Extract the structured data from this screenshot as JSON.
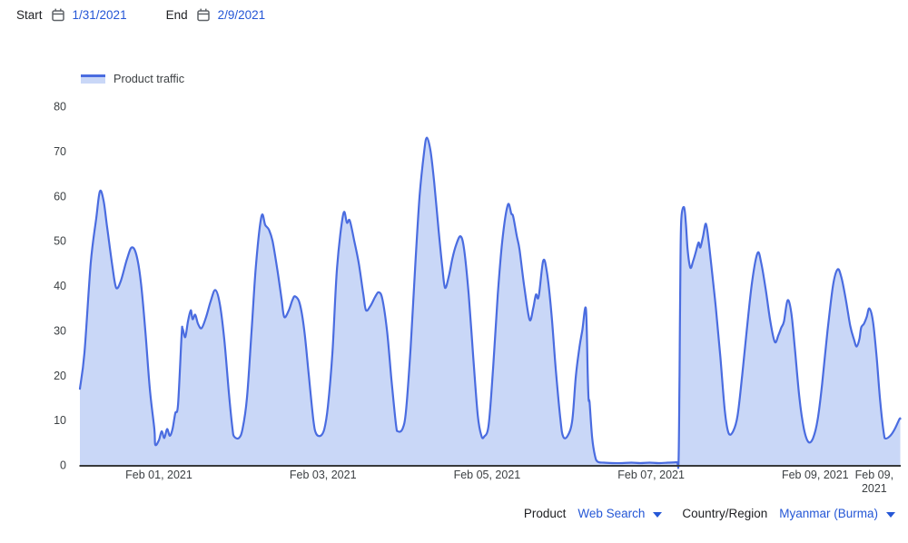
{
  "header": {
    "start_label": "Start",
    "start_date": "1/31/2021",
    "end_label": "End",
    "end_date": "2/9/2021"
  },
  "legend": {
    "label": "Product traffic"
  },
  "footer": {
    "product_label": "Product",
    "product_value": "Web Search",
    "region_label": "Country/Region",
    "region_value": "Myanmar (Burma)"
  },
  "icons": {
    "start_date_picker": "calendar-icon",
    "end_date_picker": "calendar-icon",
    "product_dropdown": "chevron-down-icon",
    "region_dropdown": "chevron-down-icon"
  },
  "colors": {
    "link_blue": "#2557d6",
    "line_blue": "#4a6ce0",
    "fill_blue": "#c9d7f7",
    "axis_dark": "#37393b",
    "text_dark": "#202124",
    "label_gray": "#3c4043",
    "icon_gray": "#5f6368"
  },
  "chart_data": {
    "type": "area",
    "title": "",
    "series_name": "Product traffic",
    "xlabel": "",
    "ylabel": "",
    "grid": false,
    "legend_position": "top-left",
    "line_color": "#4a6ce0",
    "fill_color": "#c9d7f7",
    "axis_color": "#37393b",
    "tick_label_color": "#3c4043",
    "ylim": [
      0,
      80
    ],
    "y_ticks": [
      0,
      10,
      20,
      30,
      40,
      50,
      60,
      70,
      80
    ],
    "x_unit": "days since Jan 31, 2021 00:00",
    "x_domain": [
      0.037,
      10.037
    ],
    "x_ticks": [
      {
        "pos": 1,
        "label": "Feb 01, 2021"
      },
      {
        "pos": 3,
        "label": "Feb 03, 2021"
      },
      {
        "pos": 5,
        "label": "Feb 05, 2021"
      },
      {
        "pos": 7,
        "label": "Feb 07, 2021"
      },
      {
        "pos": 9,
        "label": "Feb 09, 2021"
      }
    ],
    "x_end_label": {
      "pos": 9.72,
      "lines": [
        "Feb 09,",
        "2021"
      ]
    },
    "points": [
      [
        0.037,
        17
      ],
      [
        0.092,
        25
      ],
      [
        0.169,
        45
      ],
      [
        0.236,
        55
      ],
      [
        0.28,
        61
      ],
      [
        0.325,
        59
      ],
      [
        0.369,
        53
      ],
      [
        0.435,
        44
      ],
      [
        0.48,
        39.5
      ],
      [
        0.535,
        41
      ],
      [
        0.612,
        46
      ],
      [
        0.668,
        48.5
      ],
      [
        0.723,
        47
      ],
      [
        0.779,
        41
      ],
      [
        0.834,
        30
      ],
      [
        0.889,
        17
      ],
      [
        0.945,
        8
      ],
      [
        0.956,
        4.5
      ],
      [
        1.0,
        5.5
      ],
      [
        1.033,
        7.5
      ],
      [
        1.066,
        6
      ],
      [
        1.1,
        8
      ],
      [
        1.133,
        6.5
      ],
      [
        1.166,
        8
      ],
      [
        1.199,
        11.5
      ],
      [
        1.233,
        13.5
      ],
      [
        1.277,
        29
      ],
      [
        1.288,
        30.5
      ],
      [
        1.321,
        28.5
      ],
      [
        1.354,
        32
      ],
      [
        1.388,
        34.5
      ],
      [
        1.41,
        32.5
      ],
      [
        1.443,
        33.5
      ],
      [
        1.476,
        31.5
      ],
      [
        1.52,
        30.5
      ],
      [
        1.576,
        33
      ],
      [
        1.631,
        36.5
      ],
      [
        1.687,
        39
      ],
      [
        1.742,
        36
      ],
      [
        1.797,
        28
      ],
      [
        1.853,
        16
      ],
      [
        1.897,
        8
      ],
      [
        1.919,
        6.3
      ],
      [
        1.975,
        6
      ],
      [
        2.019,
        8
      ],
      [
        2.074,
        15
      ],
      [
        2.13,
        30
      ],
      [
        2.185,
        45
      ],
      [
        2.251,
        55.5
      ],
      [
        2.296,
        53.5
      ],
      [
        2.34,
        52.5
      ],
      [
        2.384,
        50
      ],
      [
        2.44,
        44
      ],
      [
        2.495,
        37
      ],
      [
        2.528,
        33
      ],
      [
        2.584,
        34.5
      ],
      [
        2.628,
        36.8
      ],
      [
        2.661,
        37.6
      ],
      [
        2.717,
        36
      ],
      [
        2.772,
        30
      ],
      [
        2.827,
        20
      ],
      [
        2.883,
        10
      ],
      [
        2.916,
        7
      ],
      [
        2.971,
        6.5
      ],
      [
        3.016,
        8
      ],
      [
        3.06,
        13
      ],
      [
        3.115,
        25
      ],
      [
        3.171,
        44
      ],
      [
        3.248,
        56
      ],
      [
        3.292,
        54
      ],
      [
        3.326,
        54.5
      ],
      [
        3.381,
        50
      ],
      [
        3.436,
        45
      ],
      [
        3.492,
        38
      ],
      [
        3.525,
        34.5
      ],
      [
        3.58,
        35.5
      ],
      [
        3.636,
        37.5
      ],
      [
        3.68,
        38.5
      ],
      [
        3.724,
        37
      ],
      [
        3.78,
        30
      ],
      [
        3.835,
        19
      ],
      [
        3.89,
        9
      ],
      [
        3.913,
        7.5
      ],
      [
        3.968,
        8
      ],
      [
        4.012,
        12
      ],
      [
        4.068,
        26
      ],
      [
        4.123,
        44
      ],
      [
        4.178,
        60
      ],
      [
        4.234,
        70
      ],
      [
        4.267,
        73
      ],
      [
        4.311,
        70
      ],
      [
        4.356,
        63
      ],
      [
        4.411,
        52
      ],
      [
        4.455,
        44
      ],
      [
        4.488,
        39.5
      ],
      [
        4.533,
        42
      ],
      [
        4.577,
        46
      ],
      [
        4.621,
        49
      ],
      [
        4.677,
        51
      ],
      [
        4.721,
        48
      ],
      [
        4.776,
        38
      ],
      [
        4.832,
        24
      ],
      [
        4.887,
        11
      ],
      [
        4.931,
        6.5
      ],
      [
        4.965,
        6.3
      ],
      [
        5.02,
        9
      ],
      [
        5.075,
        22
      ],
      [
        5.131,
        38
      ],
      [
        5.186,
        50
      ],
      [
        5.253,
        58
      ],
      [
        5.297,
        56
      ],
      [
        5.319,
        55.4
      ],
      [
        5.363,
        51
      ],
      [
        5.396,
        48
      ],
      [
        5.452,
        40
      ],
      [
        5.518,
        32.4
      ],
      [
        5.563,
        35
      ],
      [
        5.596,
        38
      ],
      [
        5.629,
        37.5
      ],
      [
        5.684,
        45.5
      ],
      [
        5.729,
        43
      ],
      [
        5.784,
        34
      ],
      [
        5.839,
        21
      ],
      [
        5.895,
        10
      ],
      [
        5.928,
        6.3
      ],
      [
        5.983,
        6.5
      ],
      [
        6.039,
        10
      ],
      [
        6.083,
        20
      ],
      [
        6.127,
        26.3
      ],
      [
        6.161,
        30
      ],
      [
        6.205,
        34.8
      ],
      [
        6.227,
        20
      ],
      [
        6.238,
        14.5
      ],
      [
        6.249,
        14
      ],
      [
        6.282,
        6
      ],
      [
        6.316,
        2
      ],
      [
        6.349,
        0.7
      ],
      [
        6.426,
        0.5
      ],
      [
        6.537,
        0.4
      ],
      [
        6.648,
        0.4
      ],
      [
        6.759,
        0.5
      ],
      [
        6.869,
        0.4
      ],
      [
        6.98,
        0.5
      ],
      [
        7.091,
        0.4
      ],
      [
        7.202,
        0.5
      ],
      [
        7.312,
        0.6
      ],
      [
        7.334,
        0.8
      ],
      [
        7.346,
        20
      ],
      [
        7.357,
        45
      ],
      [
        7.368,
        55
      ],
      [
        7.401,
        57.5
      ],
      [
        7.423,
        54
      ],
      [
        7.445,
        48
      ],
      [
        7.478,
        44
      ],
      [
        7.512,
        45.5
      ],
      [
        7.545,
        47.5
      ],
      [
        7.578,
        49.6
      ],
      [
        7.6,
        48.5
      ],
      [
        7.633,
        51
      ],
      [
        7.667,
        53.8
      ],
      [
        7.7,
        50
      ],
      [
        7.733,
        44.7
      ],
      [
        7.789,
        35
      ],
      [
        7.844,
        24
      ],
      [
        7.899,
        12
      ],
      [
        7.944,
        7.1
      ],
      [
        7.999,
        7.5
      ],
      [
        8.054,
        11
      ],
      [
        8.11,
        20
      ],
      [
        8.165,
        30
      ],
      [
        8.232,
        41
      ],
      [
        8.298,
        47.3
      ],
      [
        8.342,
        45
      ],
      [
        8.398,
        39
      ],
      [
        8.453,
        32
      ],
      [
        8.508,
        27.4
      ],
      [
        8.553,
        29
      ],
      [
        8.586,
        30.6
      ],
      [
        8.619,
        32
      ],
      [
        8.663,
        36.7
      ],
      [
        8.708,
        34
      ],
      [
        8.752,
        26
      ],
      [
        8.807,
        15
      ],
      [
        8.863,
        8
      ],
      [
        8.918,
        5.1
      ],
      [
        8.974,
        6
      ],
      [
        9.029,
        10
      ],
      [
        9.084,
        18
      ],
      [
        9.151,
        30
      ],
      [
        9.217,
        40
      ],
      [
        9.272,
        43.6
      ],
      [
        9.317,
        42
      ],
      [
        9.372,
        37
      ],
      [
        9.427,
        31
      ],
      [
        9.472,
        28
      ],
      [
        9.505,
        26.4
      ],
      [
        9.538,
        28
      ],
      [
        9.56,
        30.6
      ],
      [
        9.594,
        31.5
      ],
      [
        9.627,
        33
      ],
      [
        9.66,
        34.9
      ],
      [
        9.704,
        32
      ],
      [
        9.749,
        24
      ],
      [
        9.793,
        14
      ],
      [
        9.837,
        7
      ],
      [
        9.859,
        5.9
      ],
      [
        9.915,
        6.5
      ],
      [
        9.97,
        8
      ],
      [
        10.026,
        10.2
      ],
      [
        10.037,
        10.3
      ]
    ]
  }
}
